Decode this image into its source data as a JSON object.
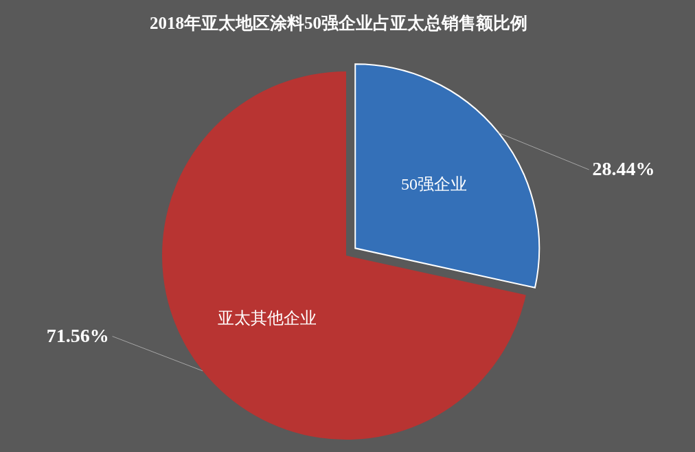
{
  "chart_data": {
    "type": "pie",
    "title": "2018年亚太地区涂料50强企业占亚太总销售额比例",
    "categories": [
      "50强企业",
      "亚太其他企业"
    ],
    "values": [
      28.44,
      71.56
    ],
    "colors": [
      "#3470b8",
      "#b83432"
    ],
    "value_labels": [
      "28.44%",
      "71.56%"
    ]
  }
}
